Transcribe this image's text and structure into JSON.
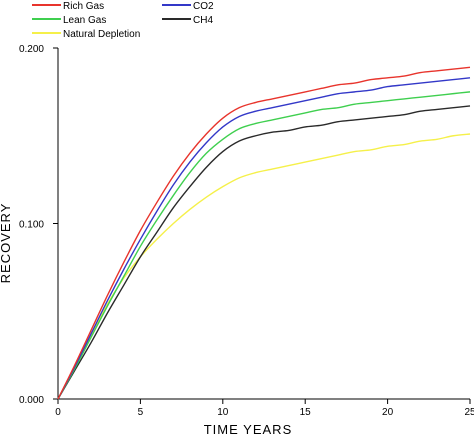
{
  "chart_data": {
    "type": "line",
    "title": "",
    "xlabel": "TIME  YEARS",
    "ylabel": "RECOVERY",
    "xlim": [
      0,
      25
    ],
    "ylim": [
      0,
      0.2
    ],
    "x_ticks": [
      "0",
      "5",
      "10",
      "15",
      "20",
      "25"
    ],
    "y_ticks": [
      "0.000",
      "0.100",
      "0.200"
    ],
    "grid": false,
    "legend_placement": "top-left",
    "series": [
      {
        "name": "Rich Gas",
        "color": "#e8342c",
        "x": [
          0,
          1,
          2,
          3,
          4,
          5,
          6,
          7,
          8,
          9,
          10,
          11,
          12,
          13,
          14,
          15,
          16,
          17,
          18,
          19,
          20,
          21,
          22,
          23,
          24,
          25
        ],
        "y": [
          0,
          0.019,
          0.039,
          0.059,
          0.078,
          0.096,
          0.112,
          0.127,
          0.14,
          0.151,
          0.16,
          0.166,
          0.169,
          0.171,
          0.173,
          0.175,
          0.177,
          0.179,
          0.18,
          0.182,
          0.183,
          0.184,
          0.186,
          0.187,
          0.188,
          0.189
        ]
      },
      {
        "name": "CO2",
        "color": "#3338c8",
        "x": [
          0,
          1,
          2,
          3,
          4,
          5,
          6,
          7,
          8,
          9,
          10,
          11,
          12,
          13,
          14,
          15,
          16,
          17,
          18,
          19,
          20,
          21,
          22,
          23,
          24,
          25
        ],
        "y": [
          0,
          0.018,
          0.037,
          0.056,
          0.074,
          0.091,
          0.107,
          0.122,
          0.135,
          0.146,
          0.155,
          0.161,
          0.164,
          0.166,
          0.168,
          0.17,
          0.172,
          0.174,
          0.175,
          0.176,
          0.178,
          0.179,
          0.18,
          0.181,
          0.182,
          0.183
        ]
      },
      {
        "name": "Lean Gas",
        "color": "#3fcf4f",
        "x": [
          0,
          1,
          2,
          3,
          4,
          5,
          6,
          7,
          8,
          9,
          10,
          11,
          12,
          13,
          14,
          15,
          16,
          17,
          18,
          19,
          20,
          21,
          22,
          23,
          24,
          25
        ],
        "y": [
          0,
          0.017,
          0.035,
          0.053,
          0.07,
          0.087,
          0.102,
          0.116,
          0.129,
          0.14,
          0.148,
          0.154,
          0.157,
          0.159,
          0.161,
          0.163,
          0.165,
          0.166,
          0.168,
          0.169,
          0.17,
          0.171,
          0.172,
          0.173,
          0.174,
          0.175
        ]
      },
      {
        "name": "CH4",
        "color": "#2a2a2a",
        "x": [
          0,
          1,
          2,
          3,
          4,
          5,
          6,
          7,
          8,
          9,
          10,
          11,
          12,
          13,
          14,
          15,
          16,
          17,
          18,
          19,
          20,
          21,
          22,
          23,
          24,
          25
        ],
        "y": [
          0,
          0.016,
          0.032,
          0.049,
          0.065,
          0.081,
          0.095,
          0.109,
          0.121,
          0.132,
          0.141,
          0.147,
          0.15,
          0.152,
          0.153,
          0.155,
          0.156,
          0.158,
          0.159,
          0.16,
          0.161,
          0.162,
          0.164,
          0.165,
          0.166,
          0.167
        ]
      },
      {
        "name": "Natural Depletion",
        "color": "#f5f04a",
        "x": [
          0,
          1,
          2,
          3,
          4,
          5,
          6,
          7,
          8,
          9,
          10,
          11,
          12,
          13,
          14,
          15,
          16,
          17,
          18,
          19,
          20,
          21,
          22,
          23,
          24,
          25
        ],
        "y": [
          0,
          0.018,
          0.036,
          0.054,
          0.069,
          0.081,
          0.091,
          0.1,
          0.108,
          0.115,
          0.121,
          0.126,
          0.129,
          0.131,
          0.133,
          0.135,
          0.137,
          0.139,
          0.141,
          0.142,
          0.144,
          0.145,
          0.147,
          0.148,
          0.15,
          0.151
        ]
      }
    ],
    "legend": [
      {
        "label": "Rich Gas",
        "color": "#e8342c"
      },
      {
        "label": "Lean Gas",
        "color": "#3fcf4f"
      },
      {
        "label": "Natural Depletion",
        "color": "#f5f04a"
      },
      {
        "label": "CO2",
        "color": "#3338c8"
      },
      {
        "label": "CH4",
        "color": "#2a2a2a"
      }
    ]
  }
}
